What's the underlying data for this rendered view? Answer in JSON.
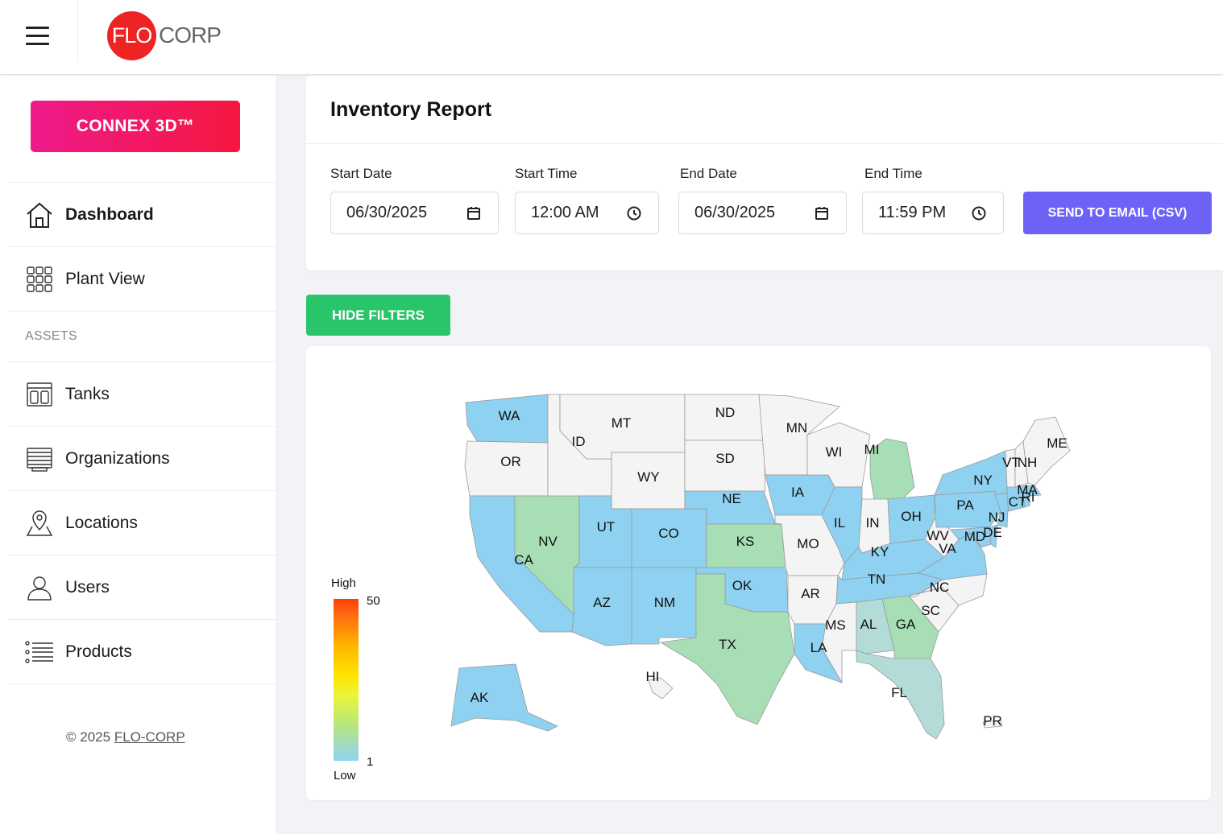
{
  "header": {
    "logo_circle": "FLO",
    "logo_text": "CORP"
  },
  "sidebar": {
    "connex_button": "CONNEX 3D™",
    "items": [
      {
        "label": "Dashboard",
        "icon": "home-icon",
        "active": true
      },
      {
        "label": "Plant View",
        "icon": "grid-icon"
      },
      {
        "label": "Tanks",
        "icon": "tank-icon"
      },
      {
        "label": "Organizations",
        "icon": "organization-icon"
      },
      {
        "label": "Locations",
        "icon": "location-pin-icon"
      },
      {
        "label": "Users",
        "icon": "user-icon"
      },
      {
        "label": "Products",
        "icon": "list-icon"
      }
    ],
    "section_assets": "ASSETS",
    "copyright_prefix": "© 2025",
    "copyright_link": "FLO-CORP"
  },
  "report": {
    "title": "Inventory Report",
    "start_date_label": "Start Date",
    "start_date_value": "06/30/2025",
    "start_time_label": "Start Time",
    "start_time_value": "12:00 AM",
    "end_date_label": "End Date",
    "end_date_value": "06/30/2025",
    "end_time_label": "End Time",
    "end_time_value": "11:59 PM",
    "send_button": "SEND TO EMAIL (CSV)"
  },
  "hide_filters_button": "HIDE FILTERS",
  "map": {
    "legend_high": "High",
    "legend_low": "Low",
    "legend_max": "50",
    "legend_min": "1",
    "colors": {
      "blue": "#8fd1f0",
      "green": "#a8deb6",
      "mid": "#b3dcd8",
      "none": "#f4f4f4"
    },
    "states": [
      {
        "abbr": "WA",
        "color": "blue"
      },
      {
        "abbr": "OR",
        "color": "none"
      },
      {
        "abbr": "CA",
        "color": "blue"
      },
      {
        "abbr": "NV",
        "color": "green"
      },
      {
        "abbr": "ID",
        "color": "none"
      },
      {
        "abbr": "MT",
        "color": "none"
      },
      {
        "abbr": "WY",
        "color": "none"
      },
      {
        "abbr": "UT",
        "color": "blue"
      },
      {
        "abbr": "AZ",
        "color": "blue"
      },
      {
        "abbr": "CO",
        "color": "blue"
      },
      {
        "abbr": "NM",
        "color": "blue"
      },
      {
        "abbr": "ND",
        "color": "none"
      },
      {
        "abbr": "SD",
        "color": "none"
      },
      {
        "abbr": "NE",
        "color": "blue"
      },
      {
        "abbr": "KS",
        "color": "green"
      },
      {
        "abbr": "OK",
        "color": "blue"
      },
      {
        "abbr": "TX",
        "color": "green"
      },
      {
        "abbr": "MN",
        "color": "none"
      },
      {
        "abbr": "IA",
        "color": "blue"
      },
      {
        "abbr": "MO",
        "color": "none"
      },
      {
        "abbr": "AR",
        "color": "none"
      },
      {
        "abbr": "LA",
        "color": "blue"
      },
      {
        "abbr": "WI",
        "color": "none"
      },
      {
        "abbr": "IL",
        "color": "blue"
      },
      {
        "abbr": "MI",
        "color": "green"
      },
      {
        "abbr": "IN",
        "color": "none"
      },
      {
        "abbr": "OH",
        "color": "blue"
      },
      {
        "abbr": "KY",
        "color": "blue"
      },
      {
        "abbr": "TN",
        "color": "blue"
      },
      {
        "abbr": "MS",
        "color": "none"
      },
      {
        "abbr": "AL",
        "color": "mid"
      },
      {
        "abbr": "GA",
        "color": "green"
      },
      {
        "abbr": "FL",
        "color": "mid"
      },
      {
        "abbr": "SC",
        "color": "none"
      },
      {
        "abbr": "NC",
        "color": "none"
      },
      {
        "abbr": "VA",
        "color": "blue"
      },
      {
        "abbr": "WV",
        "color": "none"
      },
      {
        "abbr": "PA",
        "color": "blue"
      },
      {
        "abbr": "NY",
        "color": "blue"
      },
      {
        "abbr": "NJ",
        "color": "blue"
      },
      {
        "abbr": "DE",
        "color": "blue"
      },
      {
        "abbr": "MD",
        "color": "blue"
      },
      {
        "abbr": "CT",
        "color": "blue"
      },
      {
        "abbr": "RI",
        "color": "blue"
      },
      {
        "abbr": "MA",
        "color": "blue"
      },
      {
        "abbr": "VT",
        "color": "none"
      },
      {
        "abbr": "NH",
        "color": "none"
      },
      {
        "abbr": "ME",
        "color": "none"
      },
      {
        "abbr": "AK",
        "color": "blue"
      },
      {
        "abbr": "HI",
        "color": "none"
      },
      {
        "abbr": "PR",
        "color": "none"
      }
    ]
  }
}
